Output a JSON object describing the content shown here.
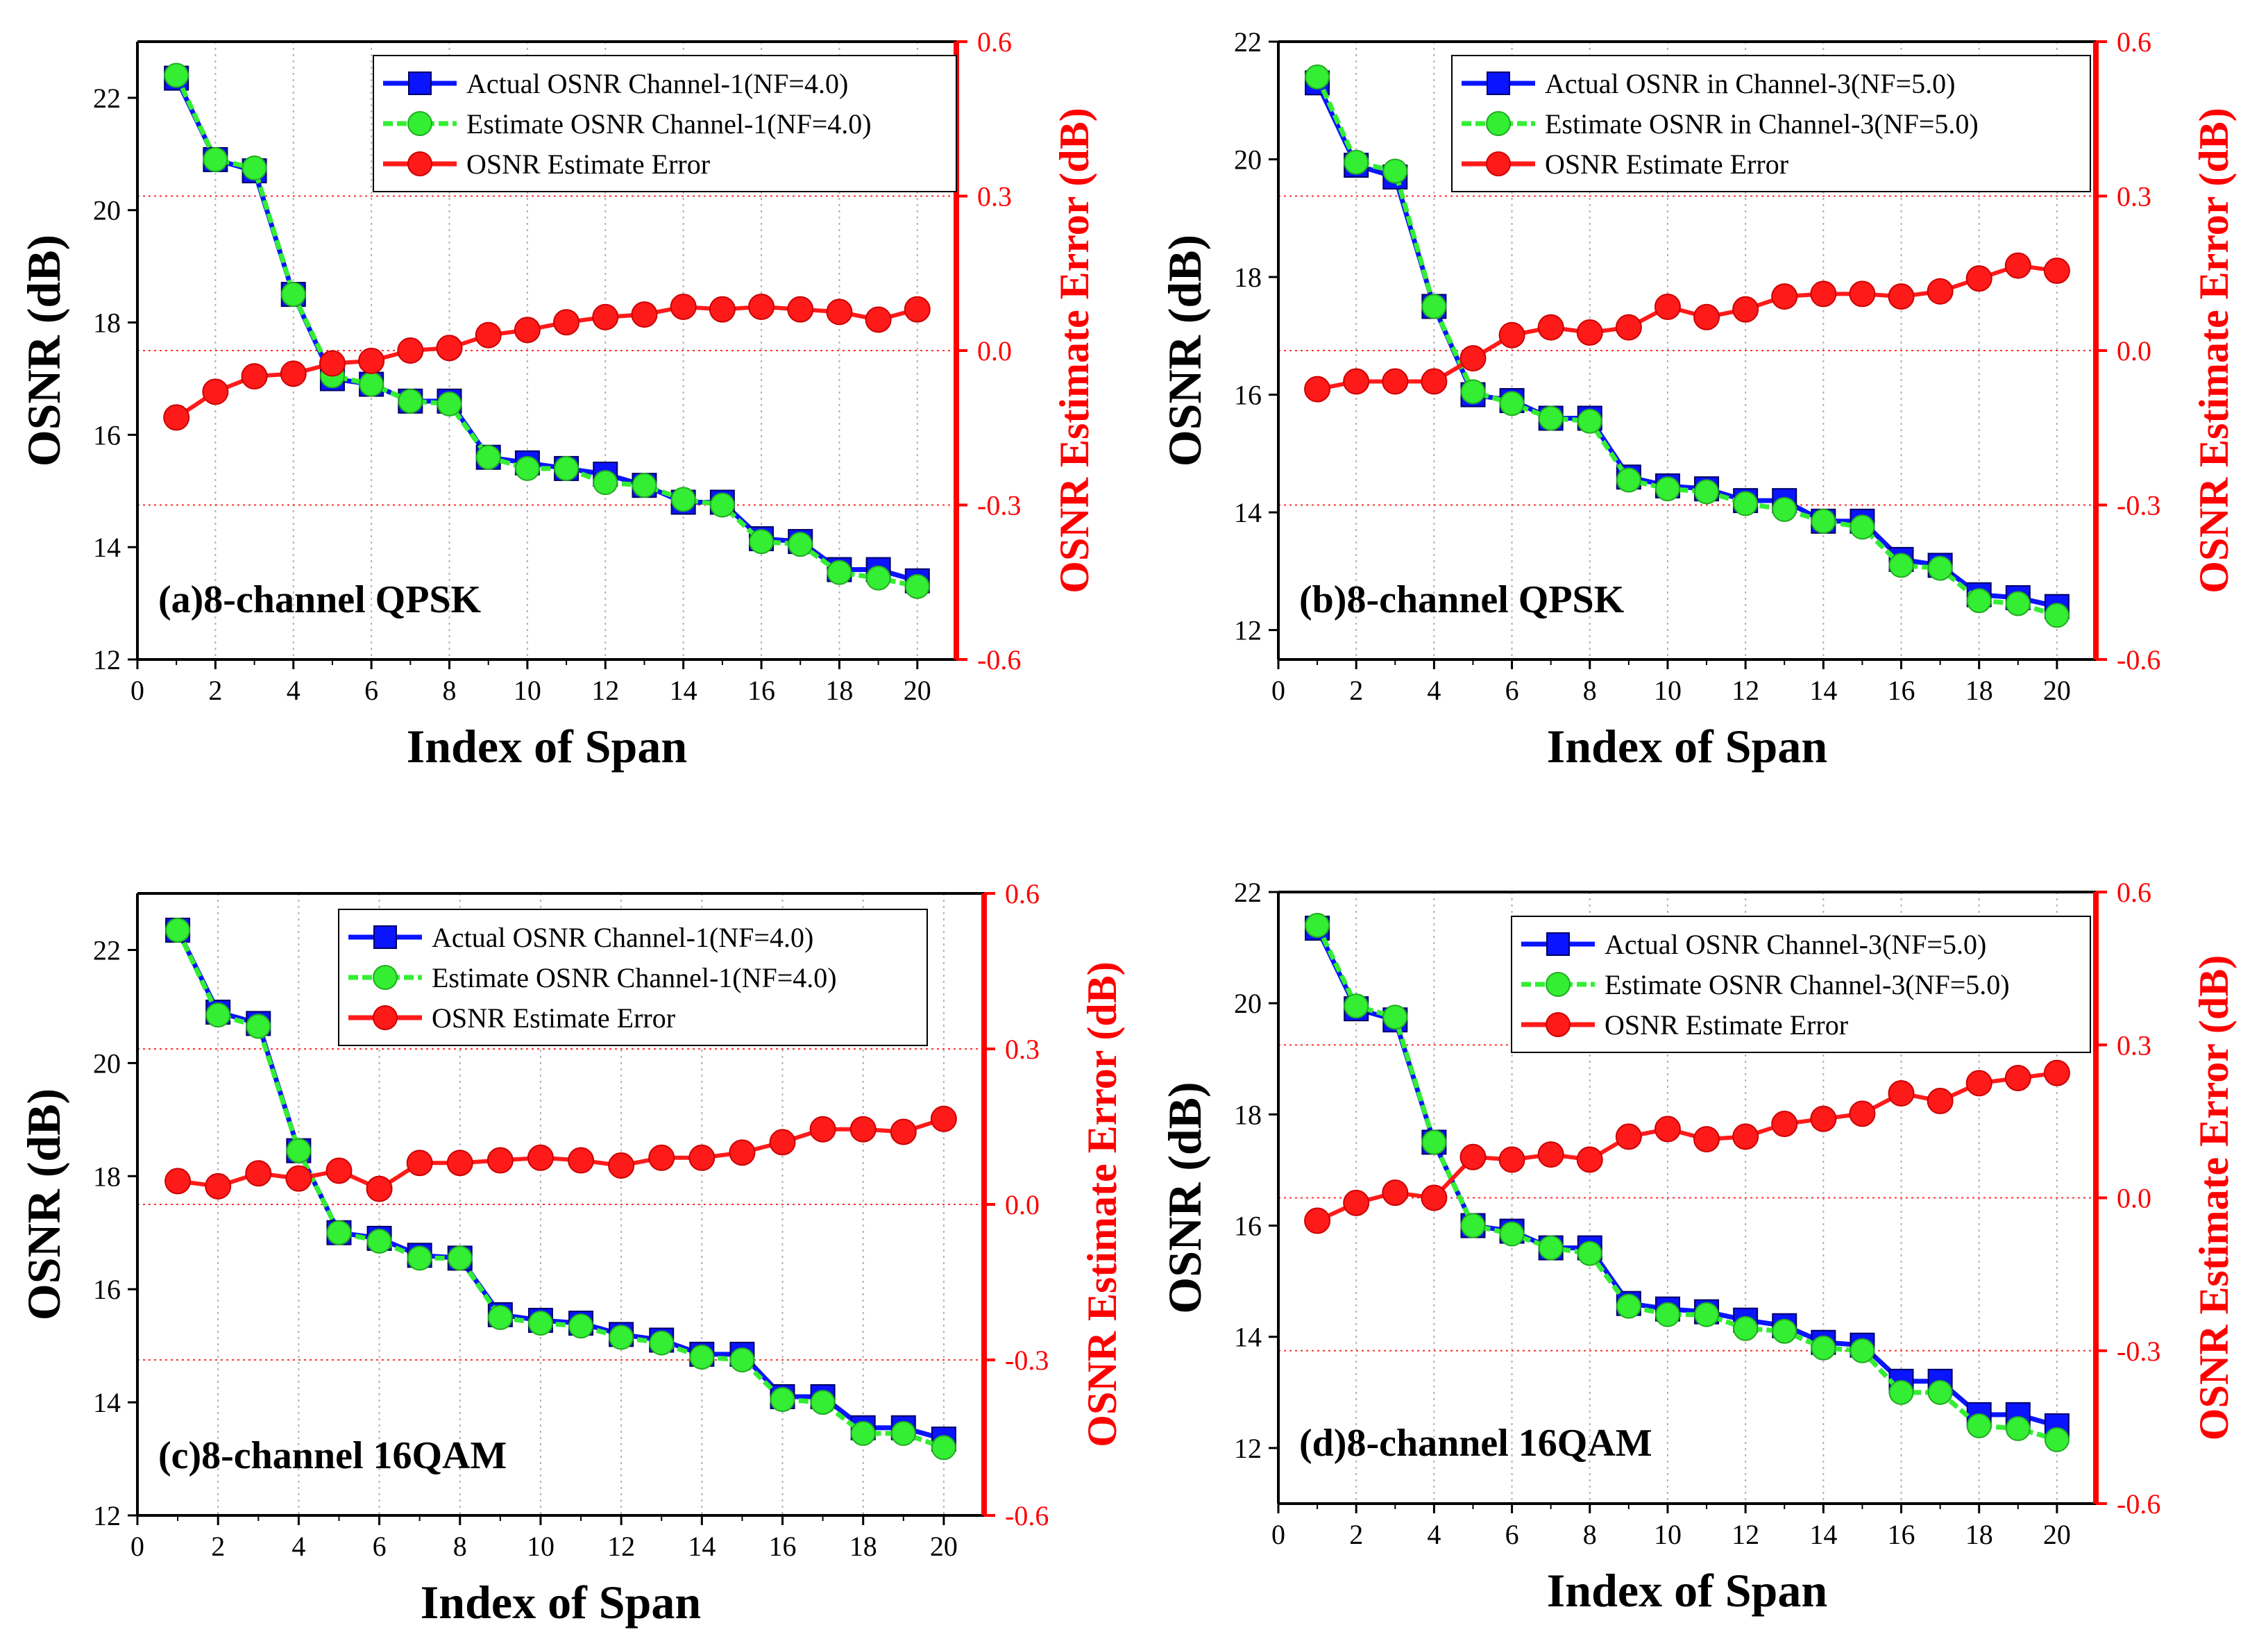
{
  "chart_data": [
    {
      "type": "line",
      "annotation": "(a)8-channel QPSK",
      "xlabel": "Index of Span",
      "ylabel": "OSNR (dB)",
      "ylabel_right": "OSNR Estimate Error (dB)",
      "xlim": [
        0,
        21
      ],
      "ylim": [
        12,
        23
      ],
      "ylim_right": [
        -0.6,
        0.6
      ],
      "xticks": [
        "0",
        "2",
        "4",
        "6",
        "8",
        "10",
        "12",
        "14",
        "16",
        "18",
        "20"
      ],
      "yticks": [
        "12",
        "14",
        "16",
        "18",
        "20",
        "22"
      ],
      "yticks_right": [
        "-0.6",
        "-0.3",
        "0.0",
        "0.3",
        "0.6"
      ],
      "grid": "dotted",
      "legend": "top-right",
      "x": [
        1,
        2,
        3,
        4,
        5,
        6,
        7,
        8,
        9,
        10,
        11,
        12,
        13,
        14,
        15,
        16,
        17,
        18,
        19,
        20
      ],
      "series": [
        {
          "name": "Actual OSNR Channel-1(NF=4.0)",
          "axis": "left",
          "marker": "square",
          "color": "#0a14ff",
          "values": [
            22.35,
            20.9,
            20.7,
            18.5,
            17.0,
            16.9,
            16.6,
            16.6,
            15.6,
            15.5,
            15.4,
            15.3,
            15.1,
            14.8,
            14.8,
            14.15,
            14.1,
            13.6,
            13.6,
            13.4
          ]
        },
        {
          "name": "Estimate OSNR Channel-1(NF=4.0)",
          "axis": "left",
          "marker": "circle",
          "color": "#33ee33",
          "values": [
            22.4,
            20.9,
            20.75,
            18.5,
            17.05,
            16.9,
            16.6,
            16.55,
            15.6,
            15.4,
            15.4,
            15.15,
            15.1,
            14.85,
            14.75,
            14.1,
            14.05,
            13.55,
            13.45,
            13.3
          ]
        },
        {
          "name": "OSNR Estimate Error",
          "axis": "right",
          "marker": "circle",
          "color": "#ff1a1a",
          "values": [
            -0.13,
            -0.08,
            -0.05,
            -0.045,
            -0.025,
            -0.02,
            0.0,
            0.005,
            0.03,
            0.04,
            0.055,
            0.065,
            0.07,
            0.085,
            0.08,
            0.085,
            0.08,
            0.075,
            0.06,
            0.08
          ]
        }
      ]
    },
    {
      "type": "line",
      "annotation": "(b)8-channel QPSK",
      "xlabel": "Index of Span",
      "ylabel": "OSNR (dB)",
      "ylabel_right": "OSNR Estimate Error (dB)",
      "xlim": [
        0,
        21
      ],
      "ylim": [
        11.5,
        22
      ],
      "ylim_right": [
        -0.6,
        0.6
      ],
      "xticks": [
        "0",
        "2",
        "4",
        "6",
        "8",
        "10",
        "12",
        "14",
        "16",
        "18",
        "20"
      ],
      "yticks": [
        "12",
        "14",
        "16",
        "18",
        "20",
        "22"
      ],
      "yticks_right": [
        "-0.6",
        "-0.3",
        "0.0",
        "0.3",
        "0.6"
      ],
      "grid": "dotted",
      "legend": "top-right",
      "x": [
        1,
        2,
        3,
        4,
        5,
        6,
        7,
        8,
        9,
        10,
        11,
        12,
        13,
        14,
        15,
        16,
        17,
        18,
        19,
        20
      ],
      "series": [
        {
          "name": "Actual OSNR in Channel-3(NF=5.0)",
          "axis": "left",
          "marker": "square",
          "color": "#0a14ff",
          "values": [
            21.3,
            19.9,
            19.7,
            17.5,
            16.0,
            15.9,
            15.6,
            15.6,
            14.6,
            14.45,
            14.4,
            14.2,
            14.2,
            13.85,
            13.85,
            13.2,
            13.1,
            12.6,
            12.55,
            12.4
          ]
        },
        {
          "name": "Estimate OSNR in Channel-3(NF=5.0)",
          "axis": "left",
          "marker": "circle",
          "color": "#33ee33",
          "values": [
            21.4,
            19.95,
            19.8,
            17.5,
            16.05,
            15.85,
            15.6,
            15.55,
            14.55,
            14.4,
            14.35,
            14.15,
            14.05,
            13.85,
            13.75,
            13.1,
            13.05,
            12.5,
            12.45,
            12.25
          ]
        },
        {
          "name": "OSNR Estimate Error",
          "axis": "right",
          "marker": "circle",
          "color": "#ff1a1a",
          "values": [
            -0.075,
            -0.06,
            -0.06,
            -0.06,
            -0.015,
            0.03,
            0.045,
            0.035,
            0.045,
            0.085,
            0.065,
            0.08,
            0.105,
            0.11,
            0.11,
            0.105,
            0.115,
            0.14,
            0.165,
            0.155
          ]
        }
      ]
    },
    {
      "type": "line",
      "annotation": "(c)8-channel 16QAM",
      "xlabel": "Index of Span",
      "ylabel": "OSNR (dB)",
      "ylabel_right": "OSNR Estimate Error (dB)",
      "xlim": [
        0,
        21
      ],
      "ylim": [
        12,
        23
      ],
      "ylim_right": [
        -0.6,
        0.6
      ],
      "xticks": [
        "0",
        "2",
        "4",
        "6",
        "8",
        "10",
        "12",
        "14",
        "16",
        "18",
        "20"
      ],
      "yticks": [
        "12",
        "14",
        "16",
        "18",
        "20",
        "22"
      ],
      "yticks_right": [
        "-0.6",
        "-0.3",
        "0.0",
        "0.3",
        "0.6"
      ],
      "grid": "dotted",
      "legend": "top-right",
      "x": [
        1,
        2,
        3,
        4,
        5,
        6,
        7,
        8,
        9,
        10,
        11,
        12,
        13,
        14,
        15,
        16,
        17,
        18,
        19,
        20
      ],
      "series": [
        {
          "name": "Actual OSNR Channel-1(NF=4.0)",
          "axis": "left",
          "marker": "square",
          "color": "#0a14ff",
          "values": [
            22.35,
            20.9,
            20.7,
            18.45,
            17.0,
            16.9,
            16.6,
            16.55,
            15.55,
            15.45,
            15.4,
            15.2,
            15.1,
            14.85,
            14.85,
            14.1,
            14.1,
            13.55,
            13.55,
            13.35
          ]
        },
        {
          "name": "Estimate OSNR Channel-1(NF=4.0)",
          "axis": "left",
          "marker": "circle",
          "color": "#33ee33",
          "values": [
            22.35,
            20.85,
            20.65,
            18.45,
            17.0,
            16.85,
            16.55,
            16.55,
            15.5,
            15.4,
            15.35,
            15.15,
            15.05,
            14.8,
            14.75,
            14.05,
            14.0,
            13.45,
            13.45,
            13.2
          ]
        },
        {
          "name": "OSNR Estimate Error",
          "axis": "right",
          "marker": "circle",
          "color": "#ff1a1a",
          "values": [
            0.045,
            0.035,
            0.06,
            0.05,
            0.065,
            0.03,
            0.08,
            0.08,
            0.085,
            0.09,
            0.085,
            0.075,
            0.09,
            0.09,
            0.1,
            0.12,
            0.145,
            0.145,
            0.14,
            0.165
          ]
        }
      ]
    },
    {
      "type": "line",
      "annotation": "(d)8-channel 16QAM",
      "xlabel": "Index of Span",
      "ylabel": "OSNR (dB)",
      "ylabel_right": "OSNR Estimate Error (dB)",
      "xlim": [
        0,
        21
      ],
      "ylim": [
        11,
        22
      ],
      "ylim_right": [
        -0.6,
        0.6
      ],
      "xticks": [
        "0",
        "2",
        "4",
        "6",
        "8",
        "10",
        "12",
        "14",
        "16",
        "18",
        "20"
      ],
      "yticks": [
        "12",
        "14",
        "16",
        "18",
        "20",
        "22"
      ],
      "yticks_right": [
        "-0.6",
        "-0.3",
        "0.0",
        "0.3",
        "0.6"
      ],
      "grid": "dotted",
      "legend": "top-right",
      "x": [
        1,
        2,
        3,
        4,
        5,
        6,
        7,
        8,
        9,
        10,
        11,
        12,
        13,
        14,
        15,
        16,
        17,
        18,
        19,
        20
      ],
      "series": [
        {
          "name": "Actual OSNR Channel-3(NF=5.0)",
          "axis": "left",
          "marker": "square",
          "color": "#0a14ff",
          "values": [
            21.35,
            19.9,
            19.7,
            17.5,
            16.0,
            15.9,
            15.6,
            15.6,
            14.6,
            14.5,
            14.45,
            14.3,
            14.2,
            13.9,
            13.85,
            13.2,
            13.2,
            12.6,
            12.6,
            12.4
          ]
        },
        {
          "name": "Estimate OSNR Channel-3(NF=5.0)",
          "axis": "left",
          "marker": "circle",
          "color": "#33ee33",
          "values": [
            21.4,
            19.95,
            19.75,
            17.5,
            16.0,
            15.85,
            15.6,
            15.5,
            14.55,
            14.4,
            14.4,
            14.15,
            14.1,
            13.8,
            13.75,
            13.0,
            13.0,
            12.4,
            12.35,
            12.15
          ]
        },
        {
          "name": "OSNR Estimate Error",
          "axis": "right",
          "marker": "circle",
          "color": "#ff1a1a",
          "values": [
            -0.045,
            -0.01,
            0.01,
            0.0,
            0.08,
            0.075,
            0.085,
            0.075,
            0.12,
            0.135,
            0.115,
            0.12,
            0.145,
            0.155,
            0.165,
            0.205,
            0.19,
            0.225,
            0.235,
            0.245
          ]
        }
      ]
    }
  ]
}
